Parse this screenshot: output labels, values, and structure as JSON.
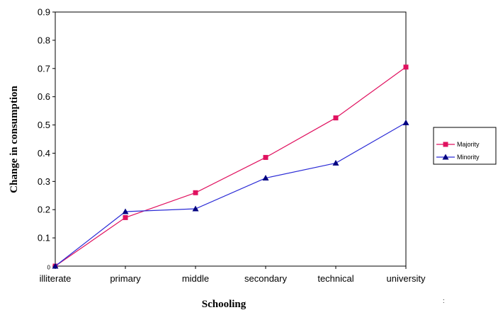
{
  "chart_data": {
    "type": "line",
    "title": "",
    "xlabel": "Schooling",
    "ylabel": "Change in consumption",
    "categories": [
      "illiterate",
      "primary",
      "middle",
      "secondary",
      "technical",
      "university"
    ],
    "ylim": [
      0,
      0.9
    ],
    "yticks": [
      "0",
      "0.1",
      "0.2",
      "0.3",
      "0.4",
      "0.5",
      "0.6",
      "0.7",
      "0.8",
      "0.9"
    ],
    "grid": false,
    "legend_position": "right",
    "series": [
      {
        "name": "Majority",
        "values": [
          0,
          0.172,
          0.26,
          0.385,
          0.525,
          0.705
        ],
        "color": "#e0115f",
        "marker": "square",
        "marker_color": "#e0115f"
      },
      {
        "name": "Minority",
        "values": [
          0,
          0.193,
          0.203,
          0.312,
          0.365,
          0.508
        ],
        "color": "#2b2bd6",
        "marker": "triangle",
        "marker_color": "#000080"
      }
    ],
    "footnote": ":"
  }
}
